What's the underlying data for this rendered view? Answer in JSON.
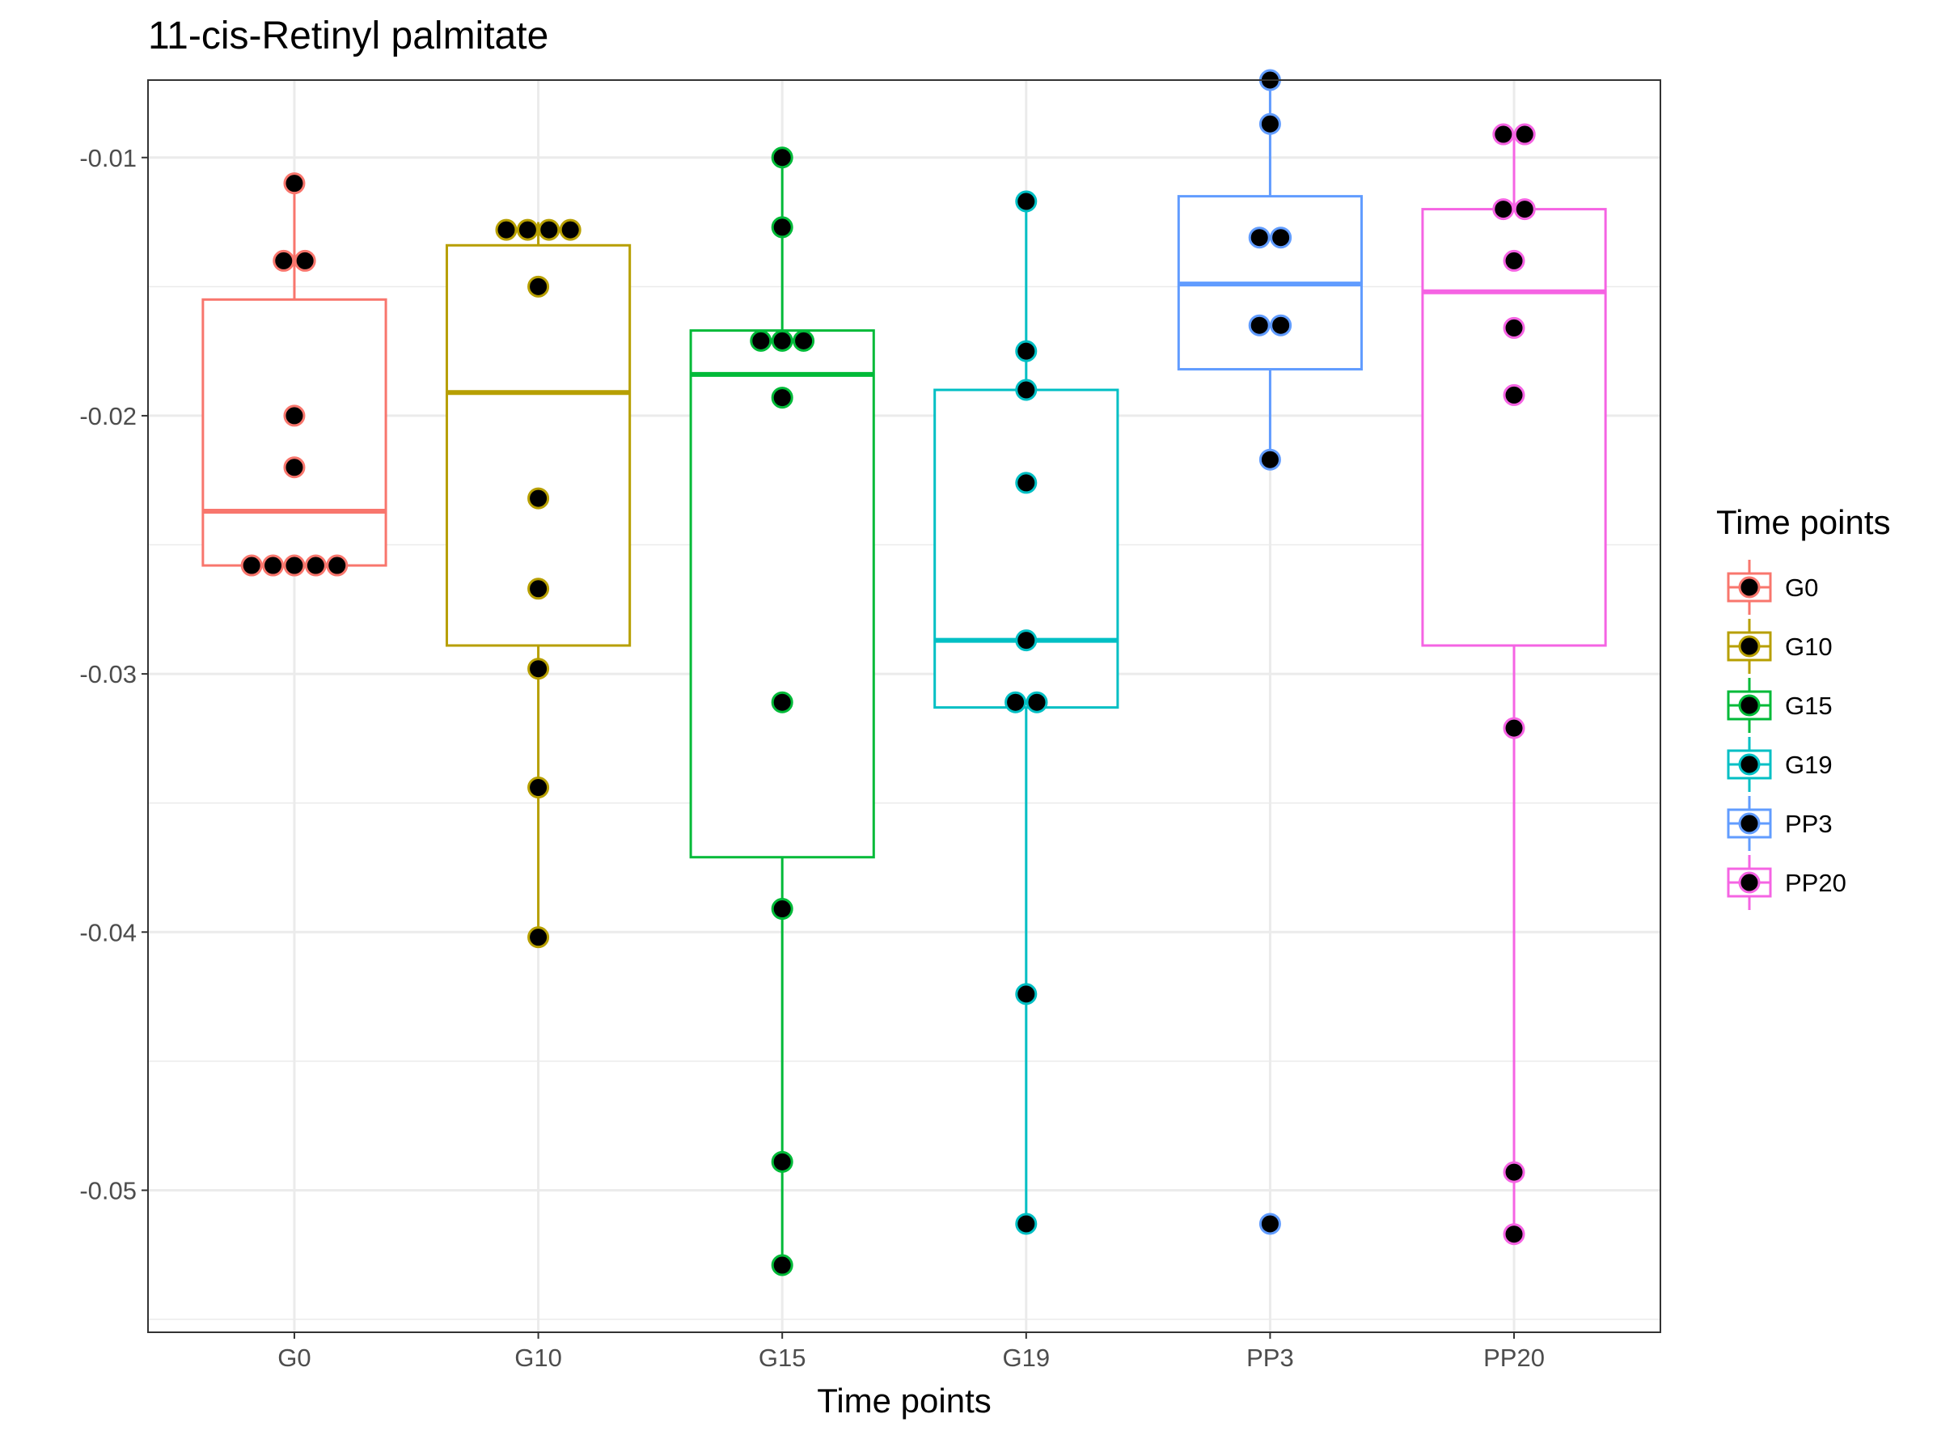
{
  "chart_data": {
    "type": "box",
    "title": "11-cis-Retinyl palmitate",
    "xlabel": "Time points",
    "ylabel": "",
    "ylim": [
      -0.0555,
      -0.007
    ],
    "yticks": [
      -0.05,
      -0.04,
      -0.03,
      -0.02,
      -0.01
    ],
    "ytick_labels": [
      "-0.05",
      "-0.04",
      "-0.03",
      "-0.02",
      "-0.01"
    ],
    "grid": true,
    "legend": {
      "title": "Time points",
      "position": "right"
    },
    "categories": [
      "G0",
      "G10",
      "G15",
      "G19",
      "PP3",
      "PP20"
    ],
    "series": [
      {
        "name": "G0",
        "color": "#F8766D",
        "box": {
          "q1": -0.0258,
          "median": -0.0237,
          "q3": -0.0155,
          "whisker_low": -0.0258,
          "whisker_high": -0.011
        },
        "points": [
          -0.011,
          -0.014,
          -0.014,
          -0.02,
          -0.022,
          -0.0258,
          -0.0258,
          -0.0258,
          -0.0258,
          -0.0258
        ]
      },
      {
        "name": "G10",
        "color": "#B79F00",
        "box": {
          "q1": -0.0289,
          "median": -0.0191,
          "q3": -0.0134,
          "whisker_low": -0.0402,
          "whisker_high": -0.0125
        },
        "points": [
          -0.0128,
          -0.0128,
          -0.0128,
          -0.0128,
          -0.015,
          -0.0232,
          -0.0267,
          -0.0298,
          -0.0344,
          -0.0402
        ]
      },
      {
        "name": "G15",
        "color": "#00BA38",
        "box": {
          "q1": -0.0371,
          "median": -0.0184,
          "q3": -0.0167,
          "whisker_low": -0.0529,
          "whisker_high": -0.01
        },
        "points": [
          -0.01,
          -0.0127,
          -0.0171,
          -0.0171,
          -0.0171,
          -0.0193,
          -0.0311,
          -0.0391,
          -0.0489,
          -0.0529
        ]
      },
      {
        "name": "G19",
        "color": "#00BFC4",
        "box": {
          "q1": -0.0313,
          "median": -0.0287,
          "q3": -0.019,
          "whisker_low": -0.0513,
          "whisker_high": -0.0117
        },
        "points": [
          -0.0117,
          -0.0175,
          -0.019,
          -0.0226,
          -0.0287,
          -0.0311,
          -0.0311,
          -0.0424,
          -0.0513
        ]
      },
      {
        "name": "PP3",
        "color": "#619CFF",
        "box": {
          "q1": -0.0182,
          "median": -0.0149,
          "q3": -0.0115,
          "whisker_low": -0.0217,
          "whisker_high": -0.007
        },
        "points": [
          -0.007,
          -0.0087,
          -0.0131,
          -0.0131,
          -0.0165,
          -0.0165,
          -0.0217,
          -0.0513
        ]
      },
      {
        "name": "PP20",
        "color": "#F564E3",
        "box": {
          "q1": -0.0289,
          "median": -0.0152,
          "q3": -0.012,
          "whisker_low": -0.0517,
          "whisker_high": -0.0091
        },
        "points": [
          -0.0091,
          -0.0091,
          -0.012,
          -0.012,
          -0.014,
          -0.0166,
          -0.0192,
          -0.0321,
          -0.0493,
          -0.0517
        ]
      }
    ]
  }
}
